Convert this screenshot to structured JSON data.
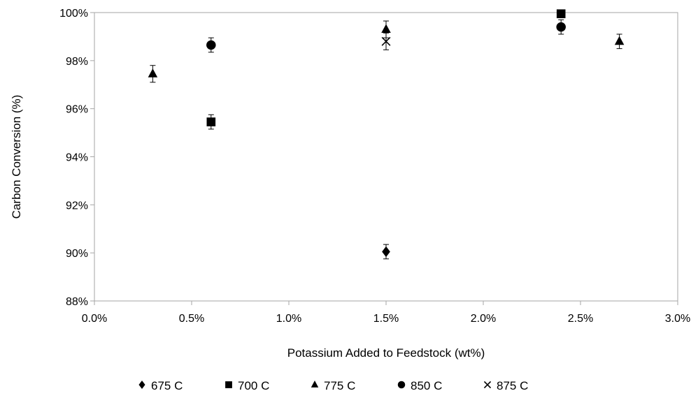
{
  "chart_data": {
    "type": "scatter",
    "xlabel": "Potassium Added to Feedstock (wt%)",
    "ylabel": "Carbon Conversion (%)",
    "xlim": [
      0.0,
      3.0
    ],
    "ylim": [
      88,
      100
    ],
    "x_ticks": [
      0.0,
      0.5,
      1.0,
      1.5,
      2.0,
      2.5,
      3.0
    ],
    "x_tick_labels": [
      "0.0%",
      "0.5%",
      "1.0%",
      "1.5%",
      "2.0%",
      "2.5%",
      "3.0%"
    ],
    "y_ticks": [
      88,
      90,
      92,
      94,
      96,
      98,
      100
    ],
    "y_tick_labels": [
      "88%",
      "90%",
      "92%",
      "94%",
      "96%",
      "98%",
      "100%"
    ],
    "grid": false,
    "legend_position": "bottom",
    "color": "#000000",
    "series": [
      {
        "name": "675 C",
        "marker": "diamond",
        "points": [
          {
            "x": 1.5,
            "y": 90.05,
            "err": 0.3
          }
        ]
      },
      {
        "name": "700 C",
        "marker": "square",
        "points": [
          {
            "x": 0.6,
            "y": 95.45,
            "err": 0.3
          },
          {
            "x": 2.4,
            "y": 99.95,
            "err": 0.0
          }
        ]
      },
      {
        "name": "775 C",
        "marker": "triangle",
        "points": [
          {
            "x": 0.3,
            "y": 97.45,
            "err": 0.35
          },
          {
            "x": 1.5,
            "y": 99.3,
            "err": 0.35
          },
          {
            "x": 2.7,
            "y": 98.8,
            "err": 0.3
          }
        ]
      },
      {
        "name": "850 C",
        "marker": "circle",
        "points": [
          {
            "x": 0.6,
            "y": 98.65,
            "err": 0.3
          },
          {
            "x": 2.4,
            "y": 99.4,
            "err": 0.3
          }
        ]
      },
      {
        "name": "875 C",
        "marker": "cross",
        "points": [
          {
            "x": 1.5,
            "y": 98.8,
            "err": 0.35
          }
        ]
      }
    ]
  }
}
